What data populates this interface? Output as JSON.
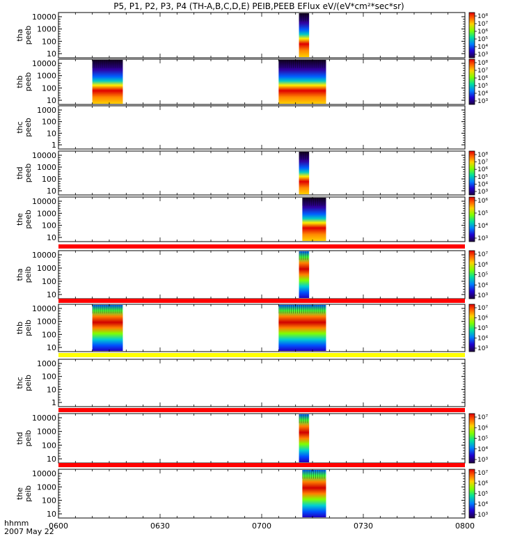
{
  "title": "P5, P1, P2, P3, P4 (TH-A,B,C,D,E) PEIB,PEEB EFlux eV/(eV*cm²*sec*sr)",
  "footer": {
    "time_label": "hhmm",
    "date_label": "2007 May 22"
  },
  "colors": {
    "status_red": "#ff0000",
    "status_yellow": "#ffff00",
    "frame": "#000000"
  },
  "chart_data": {
    "type": "heatmap",
    "x_axis": {
      "range": [
        "0600",
        "0800"
      ],
      "tick_labels": [
        "0600",
        "0630",
        "0700",
        "0730",
        "0800"
      ]
    },
    "panels": [
      {
        "id": "tha-peeb",
        "ylabel": [
          "tha",
          "peeb"
        ],
        "yticks": [
          "10000",
          "1000",
          "100",
          "10"
        ],
        "colorbar": [
          "10⁸",
          "10⁷",
          "10⁶",
          "10⁵",
          "10⁴",
          "10³"
        ],
        "blocks": [
          {
            "t_start": "0711",
            "t_end": "0714",
            "style": "electron"
          }
        ]
      },
      {
        "id": "thb-peeb",
        "ylabel": [
          "thb",
          "peeb"
        ],
        "yticks": [
          "10000",
          "1000",
          "100",
          "10"
        ],
        "colorbar": [
          "10⁸",
          "10⁷",
          "10⁶",
          "10⁵",
          "10⁴",
          "10³"
        ],
        "blocks": [
          {
            "t_start": "0610",
            "t_end": "0619",
            "style": "electron"
          },
          {
            "t_start": "0705",
            "t_end": "0719",
            "style": "electron"
          }
        ]
      },
      {
        "id": "thc-peeb",
        "ylabel": [
          "thc",
          "peeb"
        ],
        "yticks": [
          "1000",
          "100",
          "10",
          "1"
        ],
        "colorbar": null,
        "blocks": []
      },
      {
        "id": "thd-peeb",
        "ylabel": [
          "thd",
          "peeb"
        ],
        "yticks": [
          "10000",
          "1000",
          "100",
          "10"
        ],
        "colorbar": [
          "10⁸",
          "10⁷",
          "10⁶",
          "10⁵",
          "10⁴",
          "10³"
        ],
        "blocks": [
          {
            "t_start": "0711",
            "t_end": "0714",
            "style": "electron"
          }
        ]
      },
      {
        "id": "the-peeb",
        "ylabel": [
          "the",
          "peeb"
        ],
        "yticks": [
          "10000",
          "1000",
          "100",
          "10"
        ],
        "colorbar": [
          "10⁶",
          "10⁵",
          "10⁴",
          "10³"
        ],
        "blocks": [
          {
            "t_start": "0712",
            "t_end": "0719",
            "style": "electron"
          }
        ]
      },
      {
        "id": "tha-peib",
        "ylabel": [
          "tha",
          "peib"
        ],
        "yticks": [
          "10000",
          "1000",
          "100",
          "10"
        ],
        "colorbar": [
          "10⁷",
          "10⁶",
          "10⁵",
          "10⁴",
          "10³"
        ],
        "status_bar": "#ff0000",
        "blocks": [
          {
            "t_start": "0711",
            "t_end": "0714",
            "style": "ion"
          }
        ]
      },
      {
        "id": "thb-peib",
        "ylabel": [
          "thb",
          "peib"
        ],
        "yticks": [
          "10000",
          "1000",
          "100",
          "10"
        ],
        "colorbar": [
          "10⁷",
          "10⁶",
          "10⁵",
          "10⁴",
          "10³"
        ],
        "status_bar": "#ff0000",
        "blocks": [
          {
            "t_start": "0610",
            "t_end": "0619",
            "style": "ion"
          },
          {
            "t_start": "0705",
            "t_end": "0719",
            "style": "ion"
          }
        ]
      },
      {
        "id": "thc-peib",
        "ylabel": [
          "thc",
          "peib"
        ],
        "yticks": [
          "1000",
          "100",
          "10",
          "1"
        ],
        "colorbar": null,
        "status_bar": "#ffff00",
        "blocks": []
      },
      {
        "id": "thd-peib",
        "ylabel": [
          "thd",
          "peib"
        ],
        "yticks": [
          "10000",
          "1000",
          "100",
          "10"
        ],
        "colorbar": [
          "10⁷",
          "10⁶",
          "10⁵",
          "10⁴",
          "10³"
        ],
        "status_bar": "#ff0000",
        "blocks": [
          {
            "t_start": "0711",
            "t_end": "0714",
            "style": "ion"
          }
        ]
      },
      {
        "id": "the-peib",
        "ylabel": [
          "the",
          "peib"
        ],
        "yticks": [
          "10000",
          "1000",
          "100",
          "10"
        ],
        "colorbar": [
          "10⁷",
          "10⁶",
          "10⁵",
          "10⁴",
          "10³"
        ],
        "status_bar": "#ff0000",
        "blocks": [
          {
            "t_start": "0712",
            "t_end": "0719",
            "style": "ion"
          }
        ]
      }
    ]
  }
}
